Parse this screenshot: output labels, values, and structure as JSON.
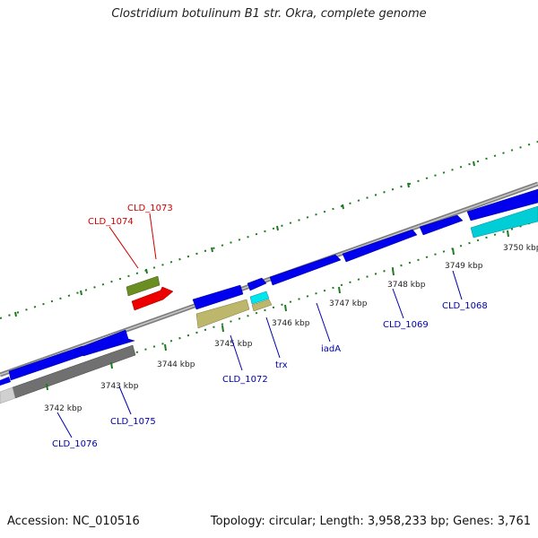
{
  "title": "Clostridium botulinum B1 str. Okra, complete genome",
  "footer": {
    "accession": "Accession: NC_010516",
    "summary": "Topology: circular; Length: 3,958,233 bp; Genes: 3,761"
  },
  "colors": {
    "backbone": "#808080",
    "tick_marks": "#1f7a1f",
    "forward_gene": "#0000ee",
    "reverse_label": "#cc0000",
    "forward_label": "#0000aa"
  },
  "scale_labels": [
    "3742 kbp",
    "3743 kbp",
    "3744 kbp",
    "3745 kbp",
    "3746 kbp",
    "3747 kbp",
    "3748 kbp",
    "3749 kbp",
    "3750 kbp"
  ],
  "gene_labels": {
    "cld_1073": "CLD_1073",
    "cld_1074": "CLD_1074",
    "cld_1072": "CLD_1072",
    "trx": "trx",
    "iada": "iadA",
    "cld_1069": "CLD_1069",
    "cld_1068": "CLD_1068",
    "cld_1075": "CLD_1075",
    "cld_1076": "CLD_1076"
  }
}
